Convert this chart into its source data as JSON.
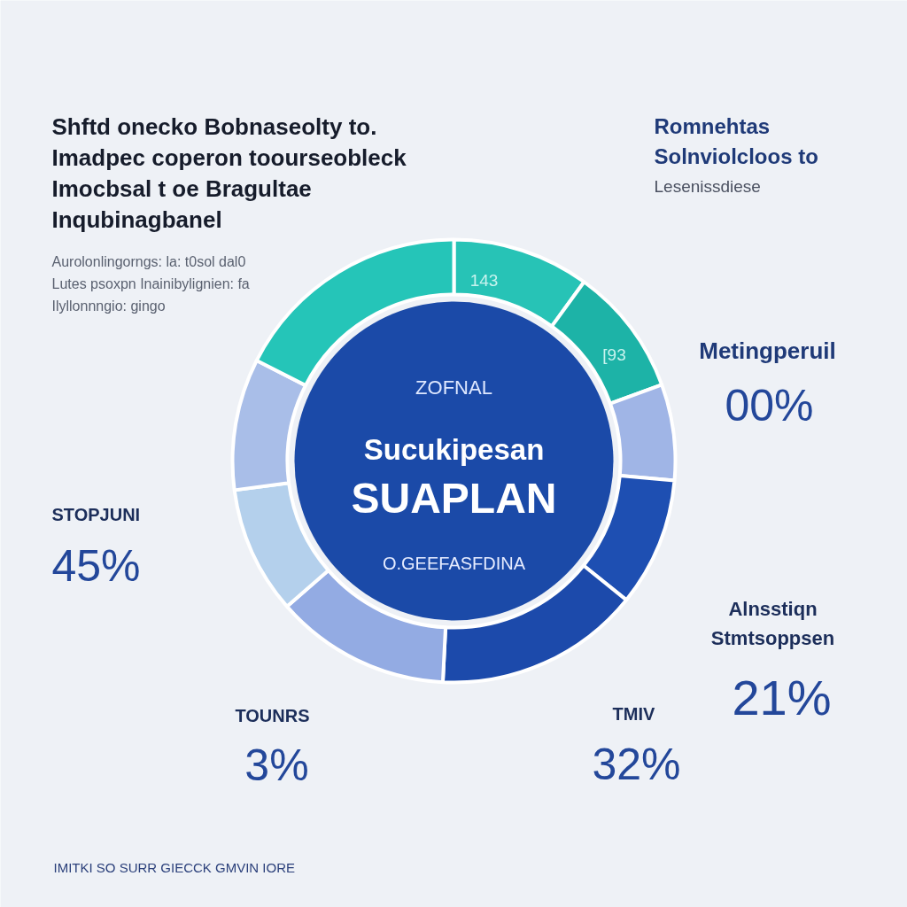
{
  "chart_data": {
    "type": "donut",
    "title": "Shftd onecko Bobnaseolty to.\nImadpec coperon toourseobleck\nImocbsal t oe Bragultae\nInqubinagbanel",
    "subtitle": "Aurolonlingorngs: la: t0sol dal0\nLutes psoxpn Inainibylignien: fa\nIlyllonnngio: gingo",
    "categories": [
      null,
      null,
      null,
      null,
      null,
      null,
      null,
      null,
      null
    ],
    "values": [
      10.0,
      9.4,
      7.0,
      9.4,
      15.0,
      12.8,
      9.3,
      9.6,
      17.5
    ],
    "colors": [
      "#27c3b6",
      "#1db3a7",
      "#a0b5e6",
      "#1e4fb2",
      "#1c4aab",
      "#93abe3",
      "#b4d0ec",
      "#a9bee8",
      "#25c5b8"
    ],
    "annotations": [
      "Romnehtas\nSolnviolcloos to",
      "Lesenissdiese",
      "Metingperuil",
      "00%",
      "143",
      "[93",
      "ZOFNAL",
      "Sucukipesan",
      "SUAPLAN",
      "O.GEEFASFDINA",
      "STOPJUNI",
      "45%",
      "TOUNRS",
      "3%",
      "TMIV",
      "32%",
      "Alnsstiqn\nStmtsoppsen",
      "21%",
      "IMITKI SO SURR GIECCK GMVIN IORE"
    ]
  }
}
